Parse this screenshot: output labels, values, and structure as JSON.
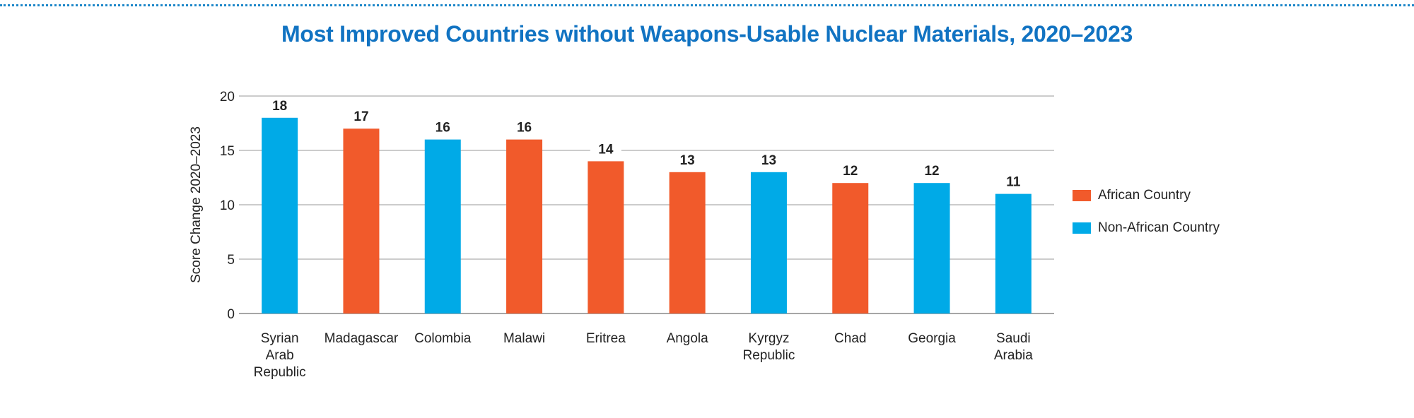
{
  "chart_data": {
    "type": "bar",
    "title": "Most Improved Countries without Weapons-Usable Nuclear Materials, 2020–2023",
    "xlabel": "",
    "ylabel": "Score Change 2020–2023",
    "ylim": [
      0,
      20
    ],
    "yticks": [
      0,
      5,
      10,
      15,
      20
    ],
    "grid": true,
    "legend_position": "right",
    "categories": [
      "Syrian Arab Republic",
      "Madagascar",
      "Colombia",
      "Malawi",
      "Eritrea",
      "Angola",
      "Kyrgyz Republic",
      "Chad",
      "Georgia",
      "Saudi Arabia"
    ],
    "values": [
      18,
      17,
      16,
      16,
      14,
      13,
      13,
      12,
      12,
      11
    ],
    "groups": [
      "Non-African Country",
      "African Country",
      "Non-African Country",
      "African Country",
      "African Country",
      "African Country",
      "Non-African Country",
      "African Country",
      "Non-African Country",
      "Non-African Country"
    ],
    "legend": [
      {
        "name": "African Country",
        "color": "#f15a2b"
      },
      {
        "name": "Non-African Country",
        "color": "#00aae7"
      }
    ]
  },
  "colors": {
    "title": "#1173c2",
    "gridline": "#999999",
    "axis": "#888888",
    "african": "#f15a2b",
    "non_african": "#00aae7"
  }
}
